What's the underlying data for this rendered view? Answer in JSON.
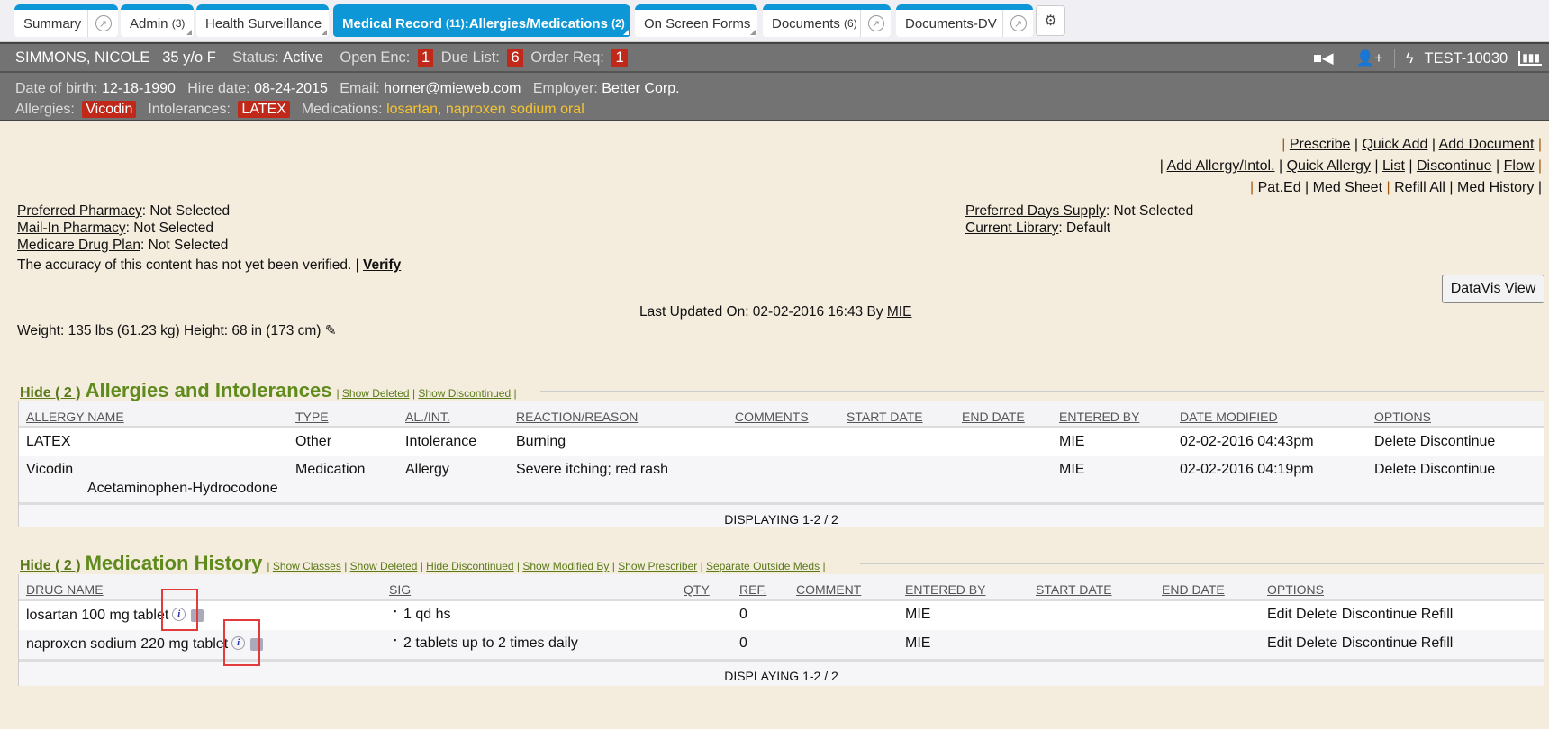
{
  "tabs": [
    {
      "label": "Summary",
      "count": ""
    },
    {
      "label": "Admin",
      "count": "(3)"
    },
    {
      "label": "Health Surveillance",
      "count": ""
    },
    {
      "label": "Medical Record",
      "count": "(11)",
      "sub": ":Allergies/Medications",
      "subcount": "(2)"
    },
    {
      "label": "On Screen Forms",
      "count": ""
    },
    {
      "label": "Documents",
      "count": "(6)"
    },
    {
      "label": "Documents-DV",
      "count": ""
    }
  ],
  "patient": {
    "name": "SIMMONS, NICOLE",
    "age": "35 y/o F",
    "status_label": "Status:",
    "status": "Active",
    "open_enc_label": "Open Enc:",
    "open_enc": "1",
    "due_list_label": "Due List:",
    "due_list": "6",
    "order_req_label": "Order Req:",
    "order_req": "1",
    "id": "TEST-10030",
    "dob_label": "Date of birth:",
    "dob": "12-18-1990",
    "hire_label": "Hire date:",
    "hire": "08-24-2015",
    "email_label": "Email:",
    "email": "horner@mieweb.com",
    "employer_label": "Employer:",
    "employer": "Better Corp.",
    "allergies_label": "Allergies:",
    "allergy": "Vicodin",
    "intol_label": "Intolerances:",
    "intol": "LATEX",
    "meds_label": "Medications:",
    "med1": "losartan",
    "med2": "naproxen sodium oral"
  },
  "actions": {
    "row1": [
      "Prescribe",
      "Quick Add",
      "Add Document"
    ],
    "row2": [
      "Add Allergy/Intol.",
      "Quick Allergy",
      "List",
      "Discontinue",
      "Flow"
    ],
    "row3": [
      "Pat.Ed",
      "Med Sheet",
      "Refill All",
      "Med History"
    ]
  },
  "info": {
    "pharm_label": "Preferred Pharmacy",
    "pharm": ": Not Selected",
    "mail_label": "Mail-In Pharmacy",
    "mail": ": Not Selected",
    "medicare_label": "Medicare Drug Plan",
    "medicare": ": Not Selected",
    "accuracy": "The accuracy of this content has not yet been verified. |",
    "verify": "Verify",
    "days_label": "Preferred Days Supply",
    "days": ": Not Selected",
    "lib_label": "Current Library",
    "lib": ": Default",
    "datavis": "DataVis View",
    "updated": "Last Updated On: 02-02-2016 16:43 By",
    "updated_by": "MIE",
    "weight": "Weight: 135 lbs (61.23 kg) Height: 68 in (173 cm)"
  },
  "allergies": {
    "hide": "Hide ( 2 )",
    "title": "Allergies and Intolerances",
    "links": [
      "Show Deleted",
      "Show Discontinued"
    ],
    "columns": [
      "ALLERGY NAME",
      "TYPE",
      "AL./INT.",
      "REACTION/REASON",
      "COMMENTS",
      "START DATE",
      "END DATE",
      "ENTERED BY",
      "DATE MODIFIED",
      "OPTIONS"
    ],
    "rows": [
      {
        "name": "LATEX",
        "sub": "",
        "type": "Other",
        "alint": "Intolerance",
        "reaction": "Burning",
        "entered": "MIE",
        "modified": "02-02-2016 04:43pm",
        "options": "Delete Discontinue"
      },
      {
        "name": "Vicodin",
        "sub": "Acetaminophen-Hydrocodone",
        "type": "Medication",
        "alint": "Allergy",
        "reaction": "Severe itching; red rash",
        "entered": "MIE",
        "modified": "02-02-2016 04:19pm",
        "options": "Delete Discontinue"
      }
    ],
    "footer": "DISPLAYING 1-2 / 2"
  },
  "meds": {
    "hide": "Hide ( 2 )",
    "title": "Medication History",
    "links": [
      "Show Classes",
      "Show Deleted",
      "Hide Discontinued",
      "Show Modified By",
      "Show Prescriber",
      "Separate Outside Meds"
    ],
    "columns": [
      "DRUG NAME",
      "SIG",
      "QTY",
      "REF.",
      "COMMENT",
      "ENTERED BY",
      "START DATE",
      "END DATE",
      "OPTIONS"
    ],
    "rows": [
      {
        "name": "losartan 100 mg tablet",
        "sig": "1 qd hs",
        "ref": "0",
        "entered": "MIE",
        "options": "Edit Delete Discontinue Refill"
      },
      {
        "name": "naproxen sodium 220 mg tablet",
        "sig": "2 tablets up to 2 times daily",
        "ref": "0",
        "entered": "MIE",
        "options": "Edit Delete Discontinue Refill"
      }
    ],
    "footer": "DISPLAYING 1-2 / 2"
  },
  "icons": {
    "popout": "popout-arrow-icon",
    "gear": "gears-icon",
    "video": "video-icon",
    "add_user": "add-user-icon",
    "bolt": "lightning-icon",
    "chart": "bar-chart-icon",
    "info": "info-icon",
    "print": "printer-icon",
    "pencil": "pencil-icon"
  }
}
